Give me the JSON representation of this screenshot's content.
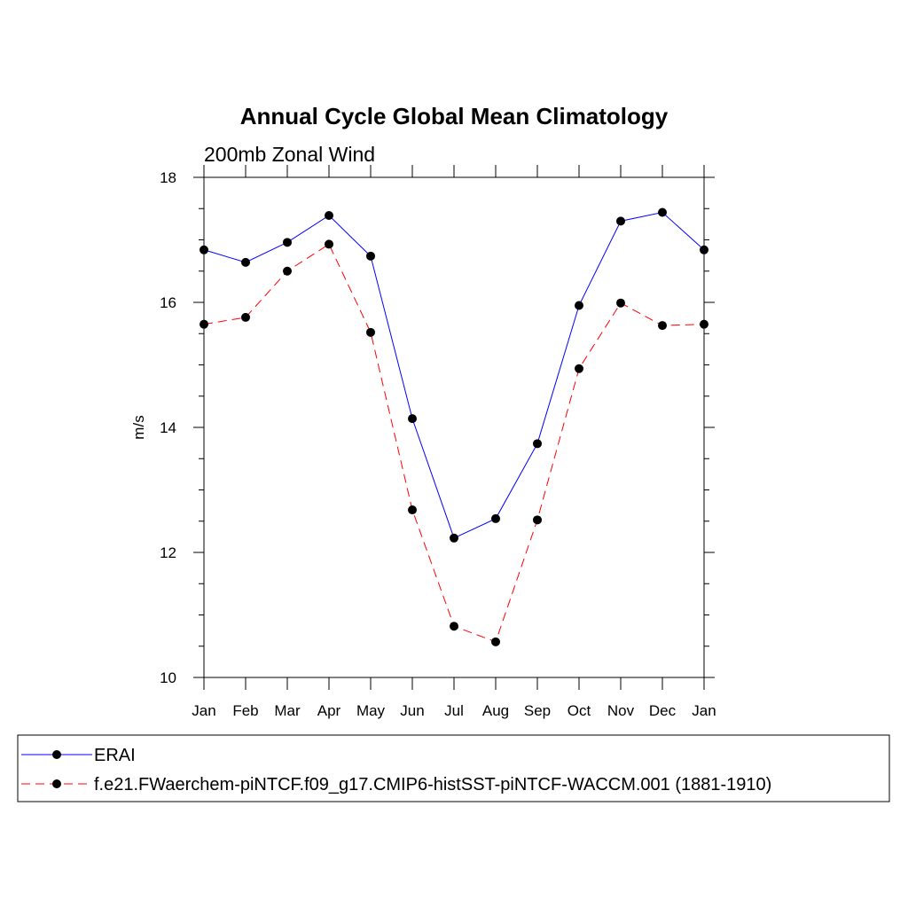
{
  "chart_data": {
    "type": "line",
    "title": "Annual Cycle Global Mean Climatology",
    "subtitle": "200mb Zonal Wind",
    "xlabel": "",
    "ylabel": "m/s",
    "categories": [
      "Jan",
      "Feb",
      "Mar",
      "Apr",
      "May",
      "Jun",
      "Jul",
      "Aug",
      "Sep",
      "Oct",
      "Nov",
      "Dec",
      "Jan"
    ],
    "ylim": [
      10,
      18
    ],
    "yticks": [
      "10",
      "12",
      "14",
      "16",
      "18"
    ],
    "ytick_values": [
      10,
      12,
      14,
      16,
      18
    ],
    "legend_position": "bottom",
    "series": [
      {
        "name": "ERAI",
        "color": "#0000ff",
        "dash": "solid",
        "values": [
          16.84,
          16.64,
          16.96,
          17.39,
          16.74,
          14.14,
          12.23,
          12.54,
          13.74,
          15.95,
          17.3,
          17.44,
          16.84
        ]
      },
      {
        "name": "f.e21.FWaerchem-piNTCF.f09_g17.CMIP6-histSST-piNTCF-WACCM.001 (1881-1910)",
        "color": "#ff0000",
        "dash": "dashed",
        "values": [
          15.65,
          15.76,
          16.5,
          16.93,
          15.52,
          12.68,
          10.82,
          10.57,
          12.52,
          14.94,
          15.99,
          15.63,
          15.65
        ]
      }
    ]
  }
}
